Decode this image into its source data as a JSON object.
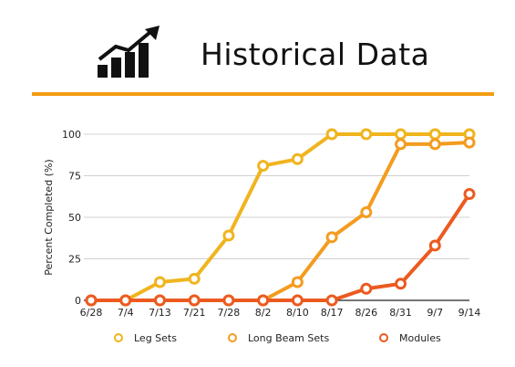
{
  "header": {
    "title": "Historical Data",
    "icon": "growth-chart-icon",
    "accent_color": "#f39c12"
  },
  "chart_data": {
    "type": "line",
    "title": "Historical Data",
    "xlabel": "",
    "ylabel": "Percent Completed (%)",
    "ylim": [
      0,
      100
    ],
    "yticks": [
      0,
      25,
      50,
      75,
      100
    ],
    "grid": true,
    "legend_position": "bottom",
    "categories": [
      "6/28",
      "7/4",
      "7/13",
      "7/21",
      "7/28",
      "8/2",
      "8/10",
      "8/17",
      "8/26",
      "8/31",
      "9/7",
      "9/14"
    ],
    "series": [
      {
        "name": "Leg Sets",
        "color": "#f0b41e",
        "values": [
          0,
          0,
          11,
          13,
          39,
          81,
          85,
          100,
          100,
          100,
          100,
          100
        ]
      },
      {
        "name": "Long Beam Sets",
        "color": "#f39c1f",
        "values": [
          0,
          0,
          0,
          0,
          0,
          0,
          11,
          38,
          53,
          94,
          94,
          95
        ]
      },
      {
        "name": "Modules",
        "color": "#ec5a1f",
        "values": [
          0,
          0,
          0,
          0,
          0,
          0,
          0,
          0,
          7,
          10,
          33,
          64
        ]
      }
    ]
  }
}
